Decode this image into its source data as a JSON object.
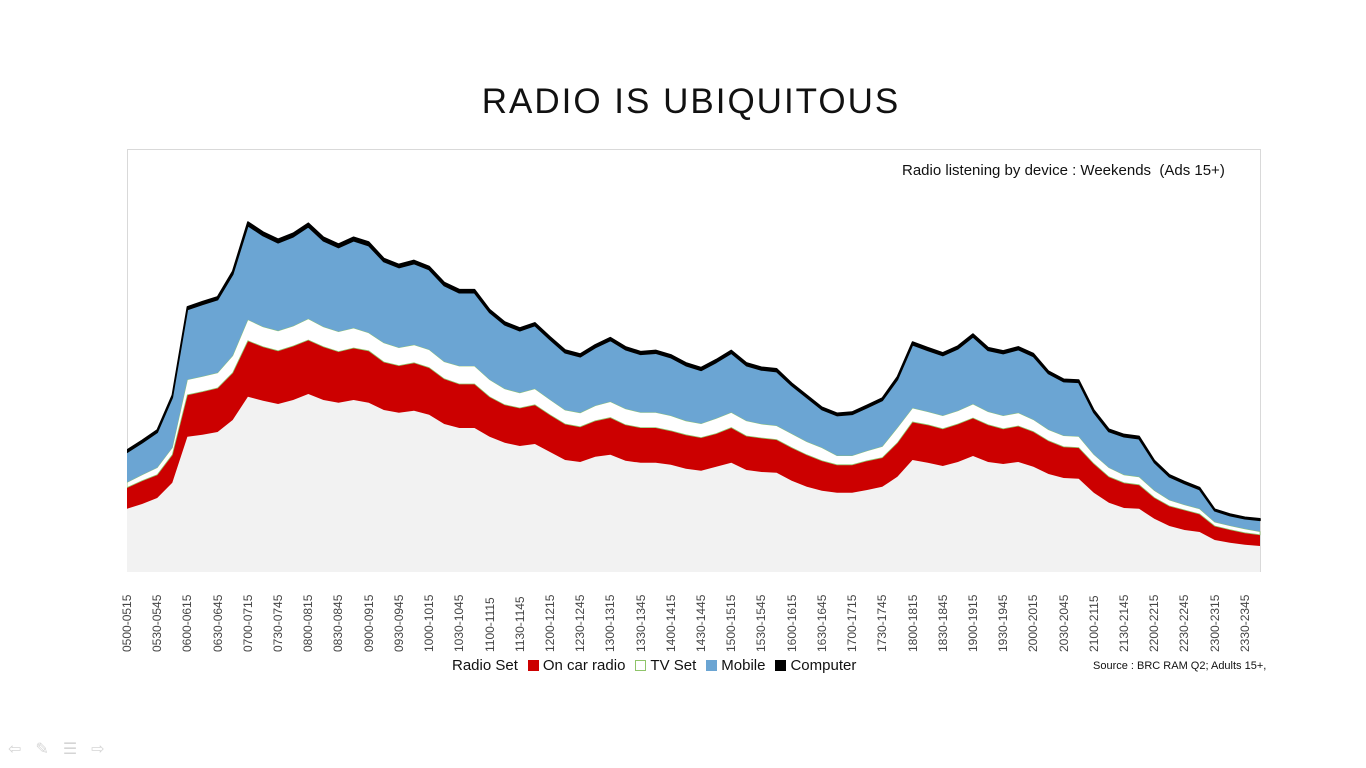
{
  "slide": {
    "title": "RADIO IS UBIQUITOUS",
    "source": "Source : BRC RAM Q2; Adults 15+,"
  },
  "nav_icons": [
    "arrow-left-icon",
    "pen-icon",
    "menu-icon",
    "arrow-right-icon"
  ],
  "chart_data": {
    "type": "area",
    "stacked": true,
    "title": "Radio listening by device : Weekends  (Ads 15+)",
    "xlabel": "",
    "ylabel": "",
    "y_axis_shown": false,
    "grid": false,
    "legend_position": "bottom",
    "ylim": [
      0,
      105.5
    ],
    "x_tick_labels": [
      "0500-0515",
      "0530-0545",
      "0600-0615",
      "0630-0645",
      "0700-0715",
      "0730-0745",
      "0800-0815",
      "0830-0845",
      "0900-0915",
      "0930-0945",
      "1000-1015",
      "1030-1045",
      "1100-1115",
      "1130-1145",
      "1200-1215",
      "1230-1245",
      "1300-1315",
      "1330-1345",
      "1400-1415",
      "1430-1445",
      "1500-1515",
      "1530-1545",
      "1600-1615",
      "1630-1645",
      "1700-1715",
      "1730-1745",
      "1800-1815",
      "1830-1845",
      "1900-1915",
      "1930-1945",
      "2000-2015",
      "2030-2045",
      "2100-2115",
      "2130-2145",
      "2200-2215",
      "2230-2245",
      "2300-2315",
      "2330-2345"
    ],
    "series": [
      {
        "name": "Radio Set",
        "color": "#f2f2f2",
        "values": [
          15.8,
          17,
          18.5,
          22.3,
          33.8,
          34.3,
          35,
          38,
          43.8,
          42.8,
          42,
          43,
          44.5,
          43,
          42.3,
          43,
          42.3,
          40.5,
          39.8,
          40.3,
          39.3,
          37,
          36,
          36,
          33.8,
          32.3,
          31.5,
          32,
          30,
          28,
          27.5,
          28.8,
          29.3,
          27.8,
          27.3,
          27.3,
          26.8,
          25.8,
          25.3,
          26.3,
          27.3,
          25.5,
          25,
          24.8,
          22.8,
          21.3,
          20.3,
          19.8,
          19.8,
          20.5,
          21.3,
          23.8,
          28,
          27.3,
          26.5,
          27.5,
          29,
          27.5,
          27,
          27.5,
          26.3,
          24.5,
          23.5,
          23.3,
          19.8,
          17.3,
          16,
          15.8,
          13.3,
          11.5,
          10.5,
          10,
          8,
          7.3,
          6.8,
          6.5
        ]
      },
      {
        "name": "On car radio",
        "color": "#cc0000",
        "values": [
          5.3,
          5.8,
          5.8,
          7,
          10.5,
          10.8,
          11,
          11.8,
          14,
          13.5,
          13.3,
          13.5,
          13.5,
          13.3,
          12.8,
          13,
          13,
          12,
          11.8,
          12,
          11.8,
          11.3,
          11,
          11,
          10,
          9.5,
          9.5,
          9.8,
          9.3,
          9,
          8.8,
          9,
          9.3,
          9,
          8.8,
          8.8,
          8.5,
          8.5,
          8.3,
          8.3,
          8.8,
          8.5,
          8.5,
          8.3,
          8.3,
          8,
          7.5,
          7,
          7,
          7.3,
          7.3,
          8.5,
          9.5,
          9.5,
          9.3,
          9.5,
          9.5,
          9.3,
          8.8,
          9,
          8.8,
          8.3,
          7.8,
          7.8,
          7.3,
          6.5,
          6.3,
          6,
          5.3,
          5,
          5,
          4.5,
          3.5,
          3.3,
          3,
          2.8
        ]
      },
      {
        "name": "TV Set",
        "color": "#ffffff",
        "outline": "#8fc46a",
        "values": [
          1.3,
          1.5,
          1.8,
          1.8,
          3.8,
          3.8,
          3.8,
          4.3,
          5.3,
          5,
          5,
          5,
          5.3,
          5,
          5,
          5,
          4.5,
          4.8,
          4.5,
          4.5,
          4.5,
          4.3,
          4.5,
          4.5,
          4.3,
          4,
          3.8,
          4,
          3.8,
          3.5,
          3.5,
          3.8,
          4,
          4,
          3.8,
          3.8,
          3.8,
          3.5,
          3.5,
          3.8,
          3.8,
          3.8,
          3.5,
          3.5,
          3.5,
          3.3,
          3.3,
          2.3,
          2.3,
          2.5,
          2.8,
          3.8,
          3.5,
          3.3,
          3.3,
          3.3,
          3.5,
          3.3,
          3.3,
          3.3,
          3,
          2.8,
          2.8,
          2.8,
          2.3,
          2.3,
          2,
          2,
          1.8,
          1.5,
          1.3,
          1.3,
          1,
          1,
          1,
          0.8
        ]
      },
      {
        "name": "Mobile",
        "color": "#6ba5d3",
        "values": [
          7.5,
          8,
          8.8,
          12.5,
          17.5,
          18,
          18.3,
          20.3,
          23.5,
          22.8,
          22,
          22.3,
          23,
          21.5,
          21,
          21.8,
          21.8,
          20.3,
          20,
          20.3,
          20,
          19,
          18.3,
          18.3,
          16.8,
          16,
          15.5,
          15.8,
          15,
          14.3,
          14,
          14.5,
          15.3,
          14.8,
          14.5,
          14.8,
          14.5,
          13.8,
          13.3,
          14,
          14.8,
          13.8,
          13.5,
          13.5,
          12,
          11,
          9.5,
          10,
          10.3,
          10.8,
          11.5,
          12,
          15.8,
          15.3,
          15,
          15.5,
          16.8,
          15.3,
          15.5,
          15.8,
          15.8,
          14,
          13.5,
          13.5,
          10.5,
          9,
          9.5,
          9.5,
          7,
          5.8,
          5.3,
          4.8,
          2.8,
          2.5,
          2.5,
          2.8
        ]
      },
      {
        "name": "Computer",
        "color": "#000000",
        "values": [
          0.6,
          0.6,
          0.6,
          0.6,
          0.7,
          0.7,
          0.7,
          0.8,
          0.9,
          0.9,
          0.9,
          0.9,
          0.9,
          0.9,
          0.9,
          0.9,
          0.9,
          0.8,
          0.8,
          0.8,
          0.8,
          0.8,
          0.8,
          0.8,
          0.7,
          0.7,
          0.7,
          0.7,
          0.7,
          0.7,
          0.7,
          0.7,
          0.7,
          0.7,
          0.7,
          0.7,
          0.7,
          0.7,
          0.7,
          0.7,
          0.7,
          0.7,
          0.7,
          0.7,
          0.6,
          0.6,
          0.6,
          0.6,
          0.6,
          0.6,
          0.6,
          0.7,
          0.7,
          0.7,
          0.7,
          0.7,
          0.7,
          0.7,
          0.7,
          0.7,
          0.7,
          0.6,
          0.6,
          0.6,
          0.6,
          0.6,
          0.6,
          0.6,
          0.5,
          0.5,
          0.5,
          0.5,
          0.4,
          0.4,
          0.4,
          0.4
        ]
      }
    ]
  }
}
